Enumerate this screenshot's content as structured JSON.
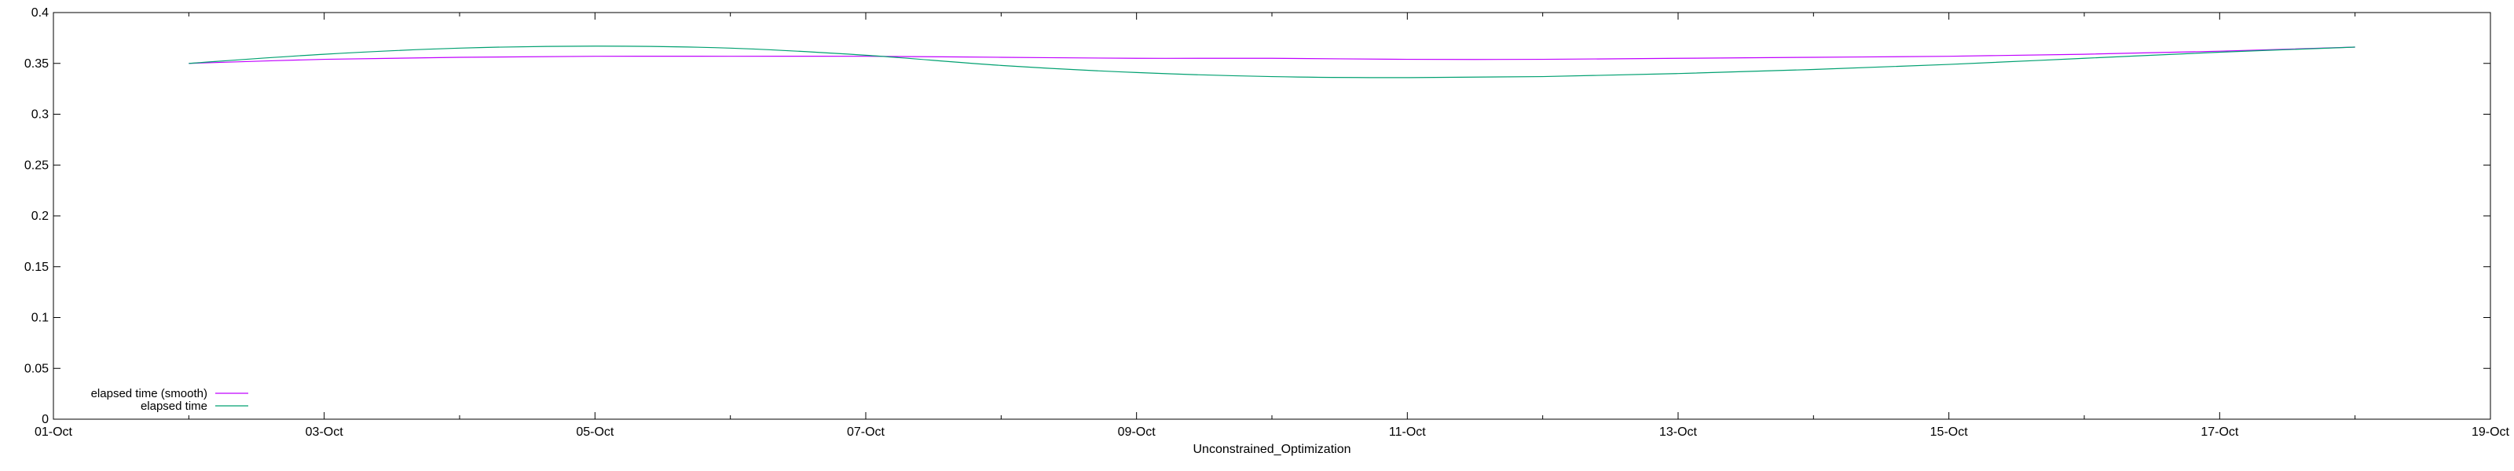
{
  "chart_data": {
    "type": "line",
    "title": "",
    "xlabel": "Unconstrained_Optimization",
    "ylabel": "",
    "x_type": "date",
    "xlim": [
      "2024-10-01",
      "2024-10-19"
    ],
    "ylim": [
      0,
      0.4
    ],
    "x_ticks": [
      {
        "date": "2024-10-01",
        "label": "01-Oct"
      },
      {
        "date": "2024-10-03",
        "label": "03-Oct"
      },
      {
        "date": "2024-10-05",
        "label": "05-Oct"
      },
      {
        "date": "2024-10-07",
        "label": "07-Oct"
      },
      {
        "date": "2024-10-09",
        "label": "09-Oct"
      },
      {
        "date": "2024-10-11",
        "label": "11-Oct"
      },
      {
        "date": "2024-10-13",
        "label": "13-Oct"
      },
      {
        "date": "2024-10-15",
        "label": "15-Oct"
      },
      {
        "date": "2024-10-17",
        "label": "17-Oct"
      },
      {
        "date": "2024-10-19",
        "label": "19-Oct"
      }
    ],
    "y_ticks": [
      {
        "value": 0,
        "label": "0"
      },
      {
        "value": 0.05,
        "label": "0.05"
      },
      {
        "value": 0.1,
        "label": "0.1"
      },
      {
        "value": 0.15,
        "label": "0.15"
      },
      {
        "value": 0.2,
        "label": "0.2"
      },
      {
        "value": 0.25,
        "label": "0.25"
      },
      {
        "value": 0.3,
        "label": "0.3"
      },
      {
        "value": 0.35,
        "label": "0.35"
      },
      {
        "value": 0.4,
        "label": "0.4"
      }
    ],
    "grid": false,
    "legend_position": "bottom-left",
    "series": [
      {
        "name": "elapsed time (smooth)",
        "color": "#c000ff",
        "x": [
          "2024-10-02",
          "2024-10-03",
          "2024-10-04",
          "2024-10-05",
          "2024-10-06",
          "2024-10-07",
          "2024-10-08",
          "2024-10-09",
          "2024-10-10",
          "2024-10-11",
          "2024-10-12",
          "2024-10-13",
          "2024-10-14",
          "2024-10-15",
          "2024-10-16",
          "2024-10-17",
          "2024-10-18"
        ],
        "y": [
          0.35,
          0.354,
          0.356,
          0.357,
          0.357,
          0.357,
          0.356,
          0.355,
          0.355,
          0.354,
          0.354,
          0.355,
          0.356,
          0.357,
          0.359,
          0.362,
          0.366
        ]
      },
      {
        "name": "elapsed time",
        "color": "#00a070",
        "x": [
          "2024-10-02",
          "2024-10-03",
          "2024-10-04",
          "2024-10-05",
          "2024-10-06",
          "2024-10-07",
          "2024-10-08",
          "2024-10-09",
          "2024-10-10",
          "2024-10-11",
          "2024-10-12",
          "2024-10-13",
          "2024-10-14",
          "2024-10-15",
          "2024-10-16",
          "2024-10-17",
          "2024-10-18"
        ],
        "y": [
          0.35,
          0.359,
          0.365,
          0.367,
          0.365,
          0.358,
          0.348,
          0.341,
          0.337,
          0.336,
          0.337,
          0.34,
          0.344,
          0.349,
          0.355,
          0.361,
          0.366
        ]
      }
    ]
  }
}
